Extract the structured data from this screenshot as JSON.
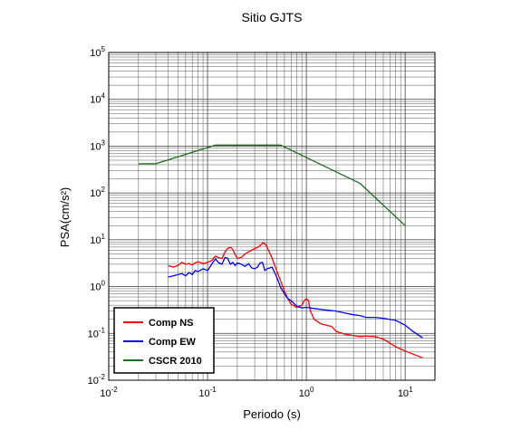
{
  "chart_data": {
    "type": "line",
    "title": "Sitio GJTS",
    "xlabel": "Periodo (s)",
    "ylabel": "PSA(cm/s²)",
    "x_scale": "log",
    "y_scale": "log",
    "xlim": [
      0.01,
      20
    ],
    "ylim": [
      0.01,
      100000
    ],
    "grid": true,
    "legend_position": "bottom-left",
    "x_tick_labels": [
      "10-2",
      "10-1",
      "100",
      "101"
    ],
    "y_tick_labels": [
      "10-2",
      "10-1",
      "100",
      "101",
      "102",
      "103",
      "104",
      "105"
    ],
    "series": [
      {
        "name": "Comp NS",
        "color": "#ff0000",
        "x": [
          0.04,
          0.045,
          0.05,
          0.055,
          0.06,
          0.065,
          0.07,
          0.075,
          0.08,
          0.09,
          0.1,
          0.11,
          0.12,
          0.13,
          0.14,
          0.15,
          0.16,
          0.17,
          0.18,
          0.19,
          0.2,
          0.22,
          0.24,
          0.26,
          0.28,
          0.3,
          0.32,
          0.34,
          0.36,
          0.38,
          0.4,
          0.45,
          0.5,
          0.55,
          0.6,
          0.65,
          0.7,
          0.8,
          0.9,
          0.95,
          1.0,
          1.05,
          1.1,
          1.2,
          1.4,
          1.6,
          1.8,
          2.0,
          2.5,
          3.0,
          3.5,
          4.0,
          5.0,
          6.0,
          7.0,
          8.0,
          10.0,
          12.0,
          15.0
        ],
        "y": [
          2.8,
          2.6,
          2.8,
          3.3,
          3.0,
          3.1,
          2.9,
          3.2,
          3.4,
          3.1,
          3.3,
          3.6,
          4.5,
          4.1,
          4.0,
          5.5,
          6.5,
          7.0,
          6.2,
          4.8,
          4.0,
          4.2,
          5.0,
          5.5,
          6.0,
          6.5,
          6.8,
          7.5,
          8.5,
          8.3,
          7.0,
          4.0,
          2.2,
          1.3,
          0.8,
          0.55,
          0.42,
          0.36,
          0.4,
          0.5,
          0.55,
          0.5,
          0.3,
          0.2,
          0.16,
          0.15,
          0.14,
          0.11,
          0.095,
          0.09,
          0.085,
          0.088,
          0.085,
          0.075,
          0.062,
          0.052,
          0.042,
          0.036,
          0.03
        ]
      },
      {
        "name": "Comp EW",
        "color": "#0000ff",
        "x": [
          0.04,
          0.045,
          0.05,
          0.055,
          0.06,
          0.065,
          0.07,
          0.075,
          0.08,
          0.09,
          0.1,
          0.11,
          0.12,
          0.13,
          0.14,
          0.15,
          0.16,
          0.17,
          0.18,
          0.19,
          0.2,
          0.22,
          0.24,
          0.26,
          0.28,
          0.3,
          0.32,
          0.34,
          0.36,
          0.38,
          0.4,
          0.45,
          0.5,
          0.55,
          0.6,
          0.65,
          0.7,
          0.8,
          0.9,
          1.0,
          1.2,
          1.5,
          2.0,
          2.5,
          3.0,
          3.5,
          4.0,
          5.0,
          6.0,
          8.0,
          10.0,
          12.0,
          15.0
        ],
        "y": [
          1.6,
          1.7,
          1.8,
          1.9,
          1.7,
          2.0,
          1.8,
          2.2,
          2.1,
          2.4,
          2.2,
          3.0,
          3.9,
          3.2,
          3.0,
          4.2,
          4.0,
          3.0,
          3.3,
          2.8,
          3.2,
          3.0,
          2.7,
          3.1,
          2.5,
          2.4,
          2.6,
          3.2,
          3.3,
          2.2,
          2.4,
          2.6,
          1.6,
          0.95,
          0.7,
          0.55,
          0.5,
          0.38,
          0.35,
          0.36,
          0.34,
          0.32,
          0.3,
          0.27,
          0.25,
          0.24,
          0.22,
          0.22,
          0.21,
          0.19,
          0.15,
          0.11,
          0.08
        ]
      },
      {
        "name": "CSCR 2010",
        "color": "#1f6b1f",
        "x": [
          0.02,
          0.03,
          0.12,
          0.55,
          3.5,
          10.0
        ],
        "y": [
          420,
          420,
          1050,
          1050,
          160,
          20
        ]
      }
    ]
  }
}
